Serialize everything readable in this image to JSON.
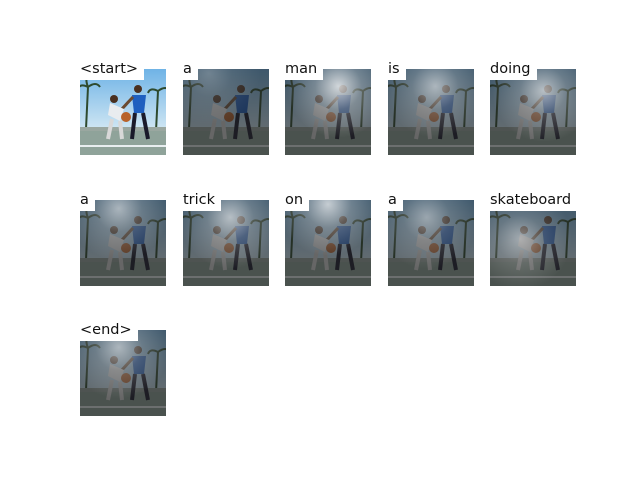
{
  "figure": {
    "tokens": [
      "<start>",
      "a",
      "man",
      "is",
      "doing",
      "a",
      "trick",
      "on",
      "a",
      "skateboard",
      "<end>"
    ]
  },
  "attention_peaks": [
    {
      "fx": 0.5,
      "fy": 0.5,
      "strength": 0.0
    },
    {
      "fx": 0.3,
      "fy": 0.05,
      "strength": 0.25
    },
    {
      "fx": 0.62,
      "fy": 0.2,
      "strength": 0.75
    },
    {
      "fx": 0.55,
      "fy": 0.2,
      "strength": 0.55
    },
    {
      "fx": 0.62,
      "fy": 0.25,
      "strength": 0.6
    },
    {
      "fx": 0.45,
      "fy": 0.1,
      "strength": 0.55
    },
    {
      "fx": 0.55,
      "fy": 0.2,
      "strength": 0.6
    },
    {
      "fx": 0.5,
      "fy": 0.05,
      "strength": 0.7
    },
    {
      "fx": 0.45,
      "fy": 0.2,
      "strength": 0.45
    },
    {
      "fx": 0.35,
      "fy": 0.45,
      "strength": 0.45
    },
    {
      "fx": 0.45,
      "fy": 0.2,
      "strength": 0.55
    }
  ],
  "colors": {
    "sky": "#6fb3e6",
    "ground": "#8fa39a",
    "shadow": "#202020",
    "highlight": "#ffffff"
  }
}
